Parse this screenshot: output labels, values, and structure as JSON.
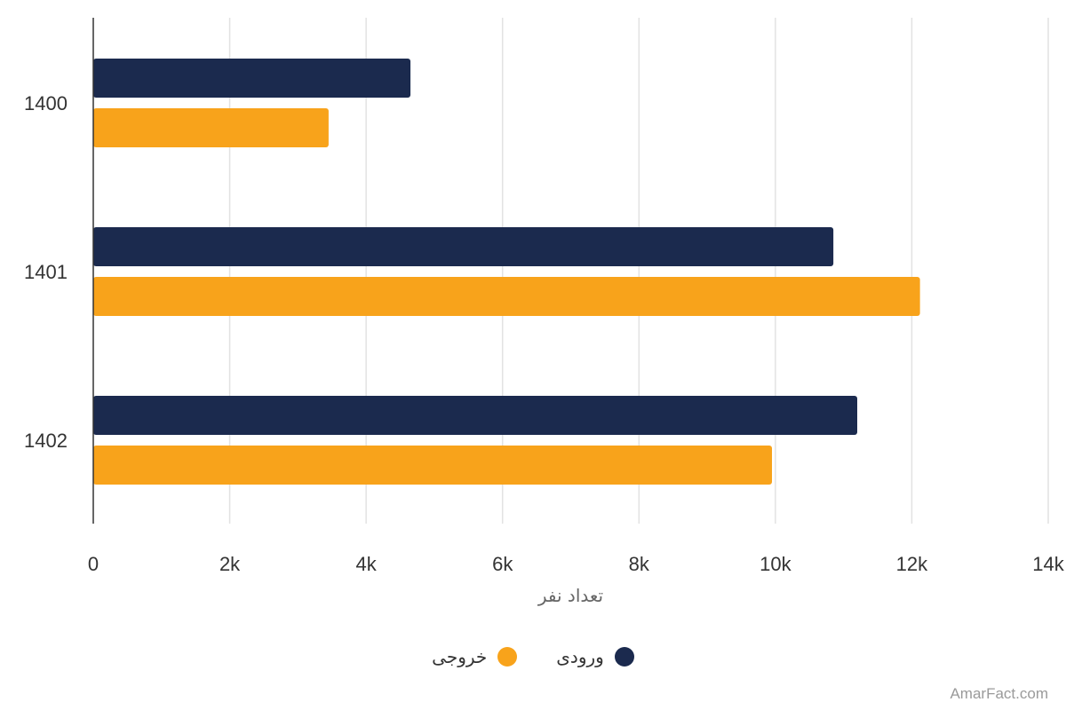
{
  "chart_data": {
    "type": "bar",
    "orientation": "horizontal",
    "categories": [
      "1400",
      "1401",
      "1402"
    ],
    "series": [
      {
        "name": "ورودی",
        "color": "#1b2a4e",
        "values": [
          4650,
          10850,
          11200
        ]
      },
      {
        "name": "خروجی",
        "color": "#f8a31b",
        "values": [
          3450,
          12120,
          9950
        ]
      }
    ],
    "xlabel": "تعداد نفر",
    "xlim": [
      0,
      14000
    ],
    "xticks": [
      0,
      2000,
      4000,
      6000,
      8000,
      10000,
      12000,
      14000
    ],
    "xtick_labels": [
      "0",
      "2k",
      "4k",
      "6k",
      "8k",
      "10k",
      "12k",
      "14k"
    ],
    "grid": true,
    "legend_position": "bottom"
  },
  "watermark": "AmarFact.com"
}
